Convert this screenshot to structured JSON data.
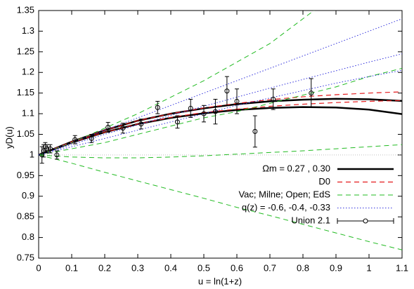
{
  "chart_data": {
    "type": "line",
    "xlabel": "u = ln(1+z)",
    "ylabel": "yD(u)",
    "xlim": [
      0,
      1.1
    ],
    "ylim": [
      0.75,
      1.35
    ],
    "xticks": [
      0,
      0.1,
      0.2,
      0.3,
      0.4,
      0.5,
      0.6,
      0.7,
      0.8,
      0.9,
      1,
      1.1
    ],
    "yticks": [
      0.75,
      0.8,
      0.85,
      0.9,
      0.95,
      1,
      1.05,
      1.1,
      1.15,
      1.2,
      1.25,
      1.3,
      1.35
    ],
    "reference_line": 1,
    "legend": "bottom right",
    "x": [
      0,
      0.1,
      0.2,
      0.3,
      0.4,
      0.5,
      0.6,
      0.7,
      0.8,
      0.9,
      1,
      1.1
    ],
    "series": [
      {
        "name": "Ωm = 0.27 , 0.30",
        "color": "#000000",
        "style": "solid",
        "width": 2.5,
        "curves": [
          [
            1,
            1.032,
            1.06,
            1.083,
            1.1,
            1.113,
            1.123,
            1.13,
            1.134,
            1.136,
            1.135,
            1.131
          ],
          [
            1,
            1.03,
            1.055,
            1.075,
            1.09,
            1.101,
            1.109,
            1.114,
            1.116,
            1.115,
            1.11,
            1.099
          ]
        ]
      },
      {
        "name": "D0",
        "color": "#e41a1c",
        "style": "dashed",
        "width": 1.2,
        "curves": [
          [
            1,
            1.032,
            1.06,
            1.083,
            1.1,
            1.114,
            1.125,
            1.134,
            1.141,
            1.146,
            1.15,
            1.153
          ],
          [
            1,
            1.03,
            1.055,
            1.075,
            1.091,
            1.103,
            1.111,
            1.118,
            1.123,
            1.127,
            1.13,
            1.132
          ]
        ]
      },
      {
        "name": "Vac; Milne; Open; EdS",
        "color": "#22bb22",
        "style": "dashed",
        "width": 1,
        "curves": [
          [
            1,
            1.03,
            1.065,
            1.1,
            1.14,
            1.18,
            1.225,
            1.27,
            1.33,
            1.39,
            1.45,
            1.52
          ],
          [
            1,
            1.015,
            1.03,
            1.05,
            1.07,
            1.09,
            1.105,
            1.125,
            1.145,
            1.165,
            1.19,
            1.21
          ],
          [
            1,
            0.995,
            0.993,
            0.993,
            0.995,
            0.998,
            1.002,
            1.006,
            1.01,
            1.015,
            1.02,
            1.025
          ],
          [
            1,
            0.98,
            0.958,
            0.937,
            0.916,
            0.895,
            0.873,
            0.853,
            0.832,
            0.811,
            0.79,
            0.77
          ]
        ]
      },
      {
        "name": "q(z) = -0.6, -0.4, -0.33",
        "color": "#3333dd",
        "style": "dotted",
        "width": 1,
        "curves": [
          [
            1,
            1.03,
            1.06,
            1.09,
            1.12,
            1.15,
            1.18,
            1.21,
            1.24,
            1.27,
            1.3,
            1.33
          ],
          [
            1,
            1.025,
            1.05,
            1.073,
            1.096,
            1.118,
            1.14,
            1.162,
            1.183,
            1.204,
            1.225,
            1.245
          ],
          [
            1,
            1.02,
            1.04,
            1.06,
            1.08,
            1.1,
            1.12,
            1.138,
            1.156,
            1.174,
            1.19,
            1.205
          ]
        ]
      },
      {
        "name": "Union 2.1",
        "color": "#000000",
        "style": "errorbar",
        "x": [
          0.01,
          0.015,
          0.02,
          0.025,
          0.035,
          0.055,
          0.11,
          0.16,
          0.21,
          0.255,
          0.31,
          0.36,
          0.42,
          0.46,
          0.5,
          0.535,
          0.57,
          0.6,
          0.655,
          0.71,
          0.825
        ],
        "values": [
          1.0,
          1.01,
          1.02,
          1.015,
          1.015,
          1.0,
          1.037,
          1.04,
          1.067,
          1.065,
          1.075,
          1.115,
          1.08,
          1.113,
          1.1,
          1.105,
          1.155,
          1.13,
          1.057,
          1.135,
          1.15
        ],
        "errors": [
          0.02,
          0.015,
          0.01,
          0.01,
          0.01,
          0.01,
          0.01,
          0.01,
          0.012,
          0.012,
          0.012,
          0.015,
          0.015,
          0.022,
          0.02,
          0.03,
          0.035,
          0.03,
          0.038,
          0.025,
          0.035
        ]
      }
    ]
  }
}
